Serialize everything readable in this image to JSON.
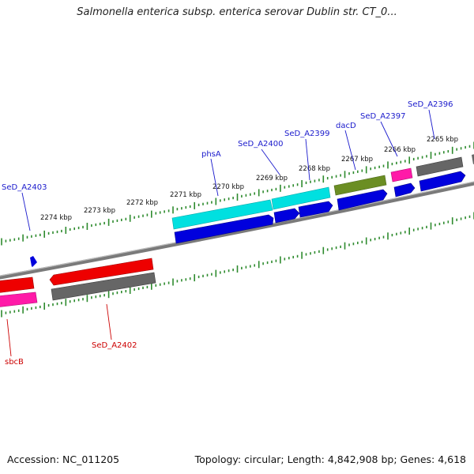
{
  "header": {
    "title": "Salmonella enterica subsp. enterica serovar Dublin str. CT_0..."
  },
  "footer": {
    "accession": "Accession: NC_011205",
    "summary": "Topology: circular; Length: 4,842,908 bp; Genes: 4,618"
  },
  "colors": {
    "cds_blue": "#0000dd",
    "cyan": "#00e0e0",
    "olive": "#6b8e23",
    "magenta": "#ff1aa8",
    "gray": "#666666",
    "red": "#ee0000",
    "tick_green": "#2e8b2e",
    "label_blue": "#1a1acc",
    "label_red": "#cc0000"
  },
  "scale": {
    "unit": "kbp",
    "major_ticks": [
      {
        "label": "2274 kbp"
      },
      {
        "label": "2273 kbp"
      },
      {
        "label": "2272 kbp"
      },
      {
        "label": "2271 kbp"
      },
      {
        "label": "2270 kbp"
      },
      {
        "label": "2269 kbp"
      },
      {
        "label": "2268 kbp"
      },
      {
        "label": "2267 kbp"
      },
      {
        "label": "2266 kbp"
      },
      {
        "label": "2265 kbp"
      }
    ]
  },
  "labels": {
    "SeD_A2403": "SeD_A2403",
    "phsA": "phsA",
    "SeD_A2400": "SeD_A2400",
    "SeD_A2399": "SeD_A2399",
    "dacD": "dacD",
    "SeD_A2397": "SeD_A2397",
    "SeD_A2396": "SeD_A2396",
    "sbcB": "sbcB",
    "SeD_A2402": "SeD_A2402"
  }
}
